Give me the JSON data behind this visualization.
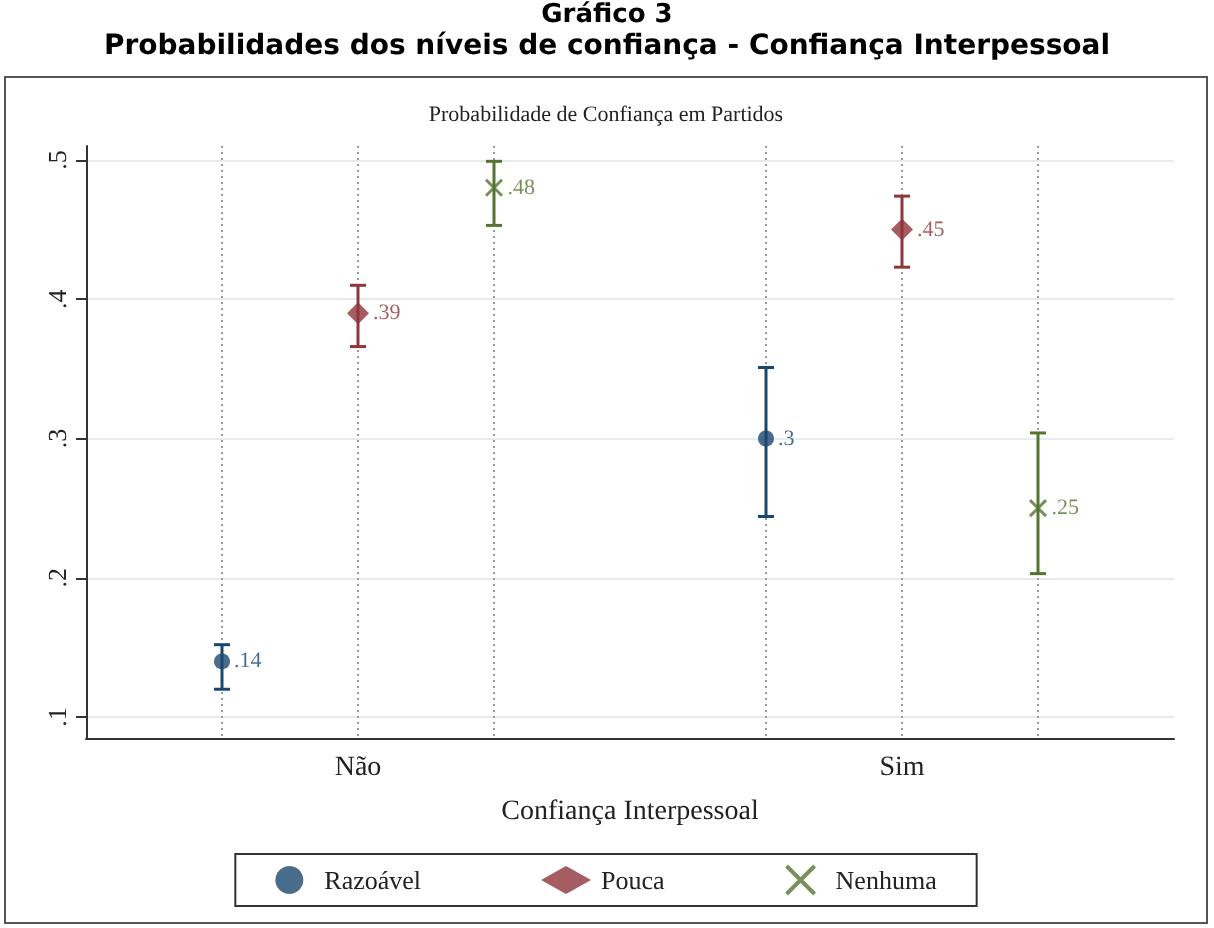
{
  "chart_data": {
    "type": "scatter",
    "title": "Gráfico 3",
    "subtitle": "Probabilidades dos níveis de confiança - Confiança Interpessoal",
    "annotations": [
      "Probabilidade de Confiança em Partidos"
    ],
    "xlabel": "Confiança Interpessoal",
    "categories": [
      "Não",
      "Sim"
    ],
    "series": [
      {
        "name": "Razoável",
        "color": "#1a476f",
        "marker": "circle",
        "values": [
          0.14,
          0.3
        ],
        "errors": [
          [
            0.12,
            0.152
          ],
          [
            0.244,
            0.351
          ]
        ],
        "value_labels": [
          ".14",
          ".3"
        ]
      },
      {
        "name": "Pouca",
        "color": "#90353b",
        "marker": "diamond",
        "values": [
          0.39,
          0.45
        ],
        "errors": [
          [
            0.366,
            0.41
          ],
          [
            0.423,
            0.474
          ]
        ],
        "value_labels": [
          ".39",
          ".45"
        ]
      },
      {
        "name": "Nenhuma",
        "color": "#55752f",
        "marker": "cross",
        "values": [
          0.48,
          0.25
        ],
        "errors": [
          [
            0.453,
            0.499
          ],
          [
            0.203,
            0.304
          ]
        ],
        "value_labels": [
          ".48",
          ".25"
        ]
      }
    ],
    "ylim": [
      0.085,
      0.51
    ],
    "yticks": [
      {
        "value": 0.1,
        "label": ".1"
      },
      {
        "value": 0.2,
        "label": ".2"
      },
      {
        "value": 0.3,
        "label": ".3"
      },
      {
        "value": 0.4,
        "label": ".4"
      },
      {
        "value": 0.5,
        "label": ".5"
      }
    ],
    "grid": true,
    "legend": "bottom"
  }
}
